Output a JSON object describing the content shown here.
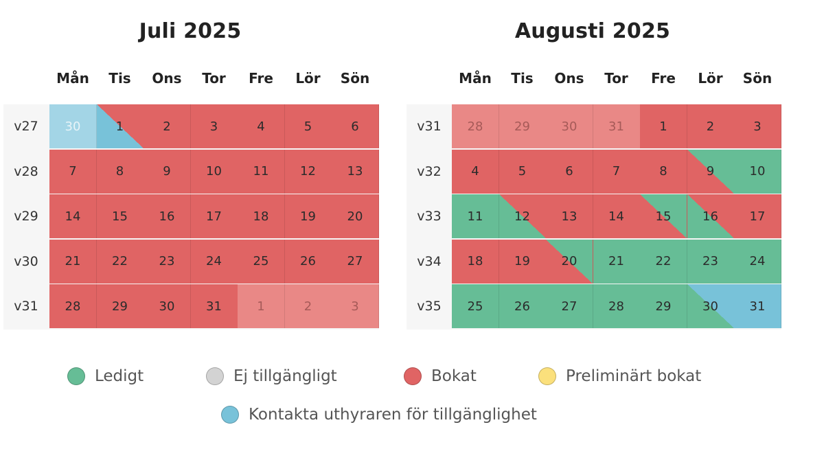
{
  "colors": {
    "booked": "#e06464",
    "booked_past": "#e98886",
    "free": "#66bd96",
    "contact": "#78c2d9",
    "contact_past": "#a3d5e6",
    "unavailable": "#d3d3d3",
    "preliminary": "#fbe07c"
  },
  "calendars": [
    {
      "title": "Juli 2025",
      "weekdays": [
        "Mån",
        "Tis",
        "Ons",
        "Tor",
        "Fre",
        "Lör",
        "Sön"
      ],
      "weeks": [
        {
          "label": "v27",
          "days": [
            {
              "d": "30",
              "s": "contact_past",
              "muted": true
            },
            {
              "d": "1",
              "s": "contact",
              "e": "booked"
            },
            {
              "d": "2",
              "s": "booked"
            },
            {
              "d": "3",
              "s": "booked"
            },
            {
              "d": "4",
              "s": "booked"
            },
            {
              "d": "5",
              "s": "booked"
            },
            {
              "d": "6",
              "s": "booked"
            }
          ]
        },
        {
          "label": "v28",
          "days": [
            {
              "d": "7",
              "s": "booked"
            },
            {
              "d": "8",
              "s": "booked"
            },
            {
              "d": "9",
              "s": "booked"
            },
            {
              "d": "10",
              "s": "booked"
            },
            {
              "d": "11",
              "s": "booked"
            },
            {
              "d": "12",
              "s": "booked"
            },
            {
              "d": "13",
              "s": "booked"
            }
          ]
        },
        {
          "label": "v29",
          "days": [
            {
              "d": "14",
              "s": "booked"
            },
            {
              "d": "15",
              "s": "booked"
            },
            {
              "d": "16",
              "s": "booked"
            },
            {
              "d": "17",
              "s": "booked"
            },
            {
              "d": "18",
              "s": "booked"
            },
            {
              "d": "19",
              "s": "booked"
            },
            {
              "d": "20",
              "s": "booked"
            }
          ]
        },
        {
          "label": "v30",
          "days": [
            {
              "d": "21",
              "s": "booked"
            },
            {
              "d": "22",
              "s": "booked"
            },
            {
              "d": "23",
              "s": "booked"
            },
            {
              "d": "24",
              "s": "booked"
            },
            {
              "d": "25",
              "s": "booked"
            },
            {
              "d": "26",
              "s": "booked"
            },
            {
              "d": "27",
              "s": "booked"
            }
          ]
        },
        {
          "label": "v31",
          "days": [
            {
              "d": "28",
              "s": "booked"
            },
            {
              "d": "29",
              "s": "booked"
            },
            {
              "d": "30",
              "s": "booked"
            },
            {
              "d": "31",
              "s": "booked"
            },
            {
              "d": "1",
              "s": "booked_past",
              "muted": true
            },
            {
              "d": "2",
              "s": "booked_past",
              "muted": true
            },
            {
              "d": "3",
              "s": "booked_past",
              "muted": true
            }
          ]
        }
      ]
    },
    {
      "title": "Augusti 2025",
      "weekdays": [
        "Mån",
        "Tis",
        "Ons",
        "Tor",
        "Fre",
        "Lör",
        "Sön"
      ],
      "weeks": [
        {
          "label": "v31",
          "days": [
            {
              "d": "28",
              "s": "booked_past",
              "muted": true
            },
            {
              "d": "29",
              "s": "booked_past",
              "muted": true
            },
            {
              "d": "30",
              "s": "booked_past",
              "muted": true
            },
            {
              "d": "31",
              "s": "booked_past",
              "muted": true
            },
            {
              "d": "1",
              "s": "booked"
            },
            {
              "d": "2",
              "s": "booked"
            },
            {
              "d": "3",
              "s": "booked"
            }
          ]
        },
        {
          "label": "v32",
          "days": [
            {
              "d": "4",
              "s": "booked"
            },
            {
              "d": "5",
              "s": "booked"
            },
            {
              "d": "6",
              "s": "booked"
            },
            {
              "d": "7",
              "s": "booked"
            },
            {
              "d": "8",
              "s": "booked"
            },
            {
              "d": "9",
              "s": "booked",
              "e": "free"
            },
            {
              "d": "10",
              "s": "free"
            }
          ]
        },
        {
          "label": "v33",
          "days": [
            {
              "d": "11",
              "s": "free"
            },
            {
              "d": "12",
              "s": "free",
              "e": "booked"
            },
            {
              "d": "13",
              "s": "booked"
            },
            {
              "d": "14",
              "s": "booked"
            },
            {
              "d": "15",
              "s": "booked",
              "e": "free"
            },
            {
              "d": "16",
              "s": "free",
              "e": "booked"
            },
            {
              "d": "17",
              "s": "booked"
            }
          ]
        },
        {
          "label": "v34",
          "days": [
            {
              "d": "18",
              "s": "booked"
            },
            {
              "d": "19",
              "s": "booked"
            },
            {
              "d": "20",
              "s": "booked",
              "e": "free"
            },
            {
              "d": "21",
              "s": "free"
            },
            {
              "d": "22",
              "s": "free"
            },
            {
              "d": "23",
              "s": "free"
            },
            {
              "d": "24",
              "s": "free"
            }
          ]
        },
        {
          "label": "v35",
          "days": [
            {
              "d": "25",
              "s": "free"
            },
            {
              "d": "26",
              "s": "free"
            },
            {
              "d": "27",
              "s": "free"
            },
            {
              "d": "28",
              "s": "free"
            },
            {
              "d": "29",
              "s": "free"
            },
            {
              "d": "30",
              "s": "free",
              "e": "contact"
            },
            {
              "d": "31",
              "s": "contact"
            }
          ]
        }
      ]
    }
  ],
  "legend": [
    {
      "label": "Ledigt",
      "color": "free"
    },
    {
      "label": "Ej tillgängligt",
      "color": "unavailable"
    },
    {
      "label": "Bokat",
      "color": "booked"
    },
    {
      "label": "Preliminärt bokat",
      "color": "preliminary"
    },
    {
      "label": "Kontakta uthyraren för tillgänglighet",
      "color": "contact"
    }
  ]
}
